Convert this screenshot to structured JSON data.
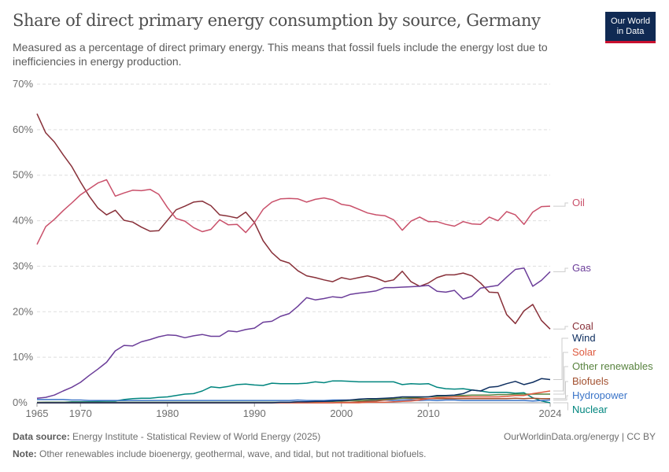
{
  "header": {
    "title": "Share of direct primary energy consumption by source, Germany",
    "subtitle": "Measured as a percentage of direct primary energy. This means that fossil fuels include the energy lost due to inefficiencies in energy production.",
    "logo_line1": "Our World",
    "logo_line2": "in Data"
  },
  "footer": {
    "source_label": "Data source:",
    "source_text": "Energy Institute - Statistical Review of World Energy (2025)",
    "url": "OurWorldinData.org/energy | CC BY",
    "note_label": "Note:",
    "note_text": "Other renewables include bioenergy, geothermal, wave, and tidal, but not traditional biofuels."
  },
  "chart_data": {
    "type": "line",
    "title": "Share of direct primary energy consumption by source, Germany",
    "xlim": [
      1965,
      2024
    ],
    "ylim": [
      0,
      70
    ],
    "grid": true,
    "x_ticks": [
      {
        "v": 1965,
        "label": "1965"
      },
      {
        "v": 1970,
        "label": "1970"
      },
      {
        "v": 1980,
        "label": "1980"
      },
      {
        "v": 1990,
        "label": "1990"
      },
      {
        "v": 2000,
        "label": "2000"
      },
      {
        "v": 2010,
        "label": "2010"
      },
      {
        "v": 2024,
        "label": "2024"
      }
    ],
    "y_ticks": [
      {
        "v": 0,
        "label": "0%"
      },
      {
        "v": 10,
        "label": "10%"
      },
      {
        "v": 20,
        "label": "20%"
      },
      {
        "v": 30,
        "label": "30%"
      },
      {
        "v": 40,
        "label": "40%"
      },
      {
        "v": 50,
        "label": "50%"
      },
      {
        "v": 60,
        "label": "60%"
      },
      {
        "v": 70,
        "label": "70%"
      }
    ],
    "x_start": 1965,
    "series": [
      {
        "name": "Oil",
        "color": "#c9506a",
        "values": [
          34.8,
          38.7,
          40.3,
          42.2,
          43.9,
          45.7,
          47.0,
          48.3,
          49.0,
          45.4,
          46.1,
          46.7,
          46.6,
          46.9,
          45.8,
          42.9,
          40.5,
          39.9,
          38.5,
          37.6,
          38.1,
          40.2,
          39.1,
          39.2,
          37.4,
          39.6,
          42.5,
          44.1,
          44.8,
          44.9,
          44.8,
          44.1,
          44.7,
          45.0,
          44.6,
          43.6,
          43.3,
          42.5,
          41.7,
          41.3,
          41.1,
          40.2,
          37.9,
          39.9,
          40.8,
          39.8,
          39.8,
          39.2,
          38.8,
          39.8,
          39.3,
          39.2,
          40.8,
          40.0,
          42.0,
          41.3,
          39.2,
          41.9,
          43.1,
          43.2
        ]
      },
      {
        "name": "Gas",
        "color": "#6b3d99",
        "values": [
          1.0,
          1.2,
          1.7,
          2.6,
          3.4,
          4.5,
          6.0,
          7.4,
          8.9,
          11.4,
          12.6,
          12.5,
          13.4,
          13.9,
          14.5,
          14.9,
          14.8,
          14.3,
          14.7,
          15.0,
          14.6,
          14.6,
          15.8,
          15.6,
          16.1,
          16.4,
          17.7,
          17.9,
          19.0,
          19.6,
          21.2,
          23.1,
          22.6,
          22.9,
          23.3,
          23.1,
          23.8,
          24.1,
          24.3,
          24.6,
          25.3,
          25.3,
          25.4,
          25.5,
          25.6,
          25.8,
          24.5,
          24.3,
          24.7,
          22.8,
          23.4,
          25.2,
          25.5,
          25.8,
          27.6,
          29.3,
          29.6,
          25.6,
          26.9,
          28.8
        ]
      },
      {
        "name": "Coal",
        "color": "#883039",
        "values": [
          63.5,
          59.3,
          57.3,
          54.5,
          51.9,
          48.5,
          45.4,
          42.8,
          41.3,
          42.3,
          40.1,
          39.7,
          38.6,
          37.7,
          37.8,
          40.1,
          42.4,
          43.2,
          44.1,
          44.3,
          43.3,
          41.3,
          41.0,
          40.6,
          41.9,
          39.6,
          35.6,
          33.0,
          31.3,
          30.7,
          29.0,
          27.9,
          27.5,
          27.0,
          26.6,
          27.5,
          27.1,
          27.5,
          27.9,
          27.4,
          26.6,
          27.0,
          28.9,
          26.6,
          25.6,
          26.3,
          27.5,
          28.1,
          28.1,
          28.5,
          27.9,
          26.3,
          24.3,
          24.2,
          19.4,
          17.4,
          20.2,
          21.6,
          18.1,
          16.2
        ]
      },
      {
        "name": "Wind",
        "color": "#0f2f60",
        "values": [
          0,
          0,
          0,
          0,
          0,
          0,
          0,
          0,
          0,
          0,
          0,
          0,
          0,
          0,
          0,
          0,
          0,
          0,
          0,
          0,
          0,
          0,
          0,
          0,
          0,
          0,
          0,
          0,
          0.1,
          0.1,
          0.2,
          0.2,
          0.3,
          0.3,
          0.4,
          0.5,
          0.6,
          0.8,
          0.9,
          0.9,
          1.0,
          1.1,
          1.3,
          1.3,
          1.3,
          1.3,
          1.6,
          1.6,
          1.7,
          2.0,
          2.8,
          2.6,
          3.4,
          3.6,
          4.2,
          4.7,
          4.0,
          4.5,
          5.3,
          5.1
        ]
      },
      {
        "name": "Solar",
        "color": "#de5b40",
        "values": [
          0,
          0,
          0,
          0,
          0,
          0,
          0,
          0,
          0,
          0,
          0,
          0,
          0,
          0,
          0,
          0,
          0,
          0,
          0,
          0,
          0,
          0,
          0,
          0,
          0,
          0,
          0,
          0,
          0,
          0,
          0,
          0,
          0,
          0,
          0,
          0,
          0,
          0,
          0.1,
          0.1,
          0.1,
          0.2,
          0.3,
          0.4,
          0.6,
          0.9,
          1.1,
          1.2,
          1.3,
          1.3,
          1.3,
          1.3,
          1.3,
          1.3,
          1.4,
          1.6,
          1.6,
          2.0,
          2.3,
          2.6
        ]
      },
      {
        "name": "Other renewables",
        "color": "#58833f",
        "values": [
          0.1,
          0.1,
          0.1,
          0.1,
          0.1,
          0.1,
          0.1,
          0.1,
          0.1,
          0.1,
          0.1,
          0.1,
          0.1,
          0.1,
          0.1,
          0.1,
          0.1,
          0.1,
          0.1,
          0.1,
          0.1,
          0.1,
          0.1,
          0.1,
          0.1,
          0.1,
          0.1,
          0.1,
          0.1,
          0.1,
          0.2,
          0.2,
          0.2,
          0.3,
          0.3,
          0.4,
          0.5,
          0.5,
          0.6,
          0.7,
          0.8,
          0.9,
          1.0,
          1.1,
          1.2,
          1.3,
          1.4,
          1.5,
          1.6,
          1.6,
          1.7,
          1.7,
          1.7,
          1.8,
          1.8,
          1.9,
          1.9,
          1.9,
          1.9,
          1.9
        ]
      },
      {
        "name": "Biofuels",
        "color": "#a35130",
        "values": [
          0,
          0,
          0,
          0,
          0,
          0,
          0,
          0,
          0,
          0,
          0,
          0,
          0,
          0,
          0,
          0,
          0,
          0,
          0,
          0,
          0,
          0,
          0,
          0,
          0,
          0,
          0,
          0,
          0,
          0,
          0,
          0,
          0,
          0,
          0,
          0.1,
          0.1,
          0.2,
          0.3,
          0.4,
          0.6,
          0.8,
          1.0,
          0.9,
          0.9,
          0.9,
          0.9,
          0.9,
          0.9,
          0.9,
          0.9,
          0.9,
          0.9,
          0.9,
          0.9,
          1.0,
          0.9,
          1.0,
          0.9,
          0.9
        ]
      },
      {
        "name": "Hydropower",
        "color": "#3a74c8",
        "values": [
          0.7,
          0.7,
          0.7,
          0.7,
          0.6,
          0.6,
          0.5,
          0.5,
          0.5,
          0.5,
          0.5,
          0.5,
          0.5,
          0.5,
          0.5,
          0.5,
          0.5,
          0.5,
          0.5,
          0.5,
          0.5,
          0.5,
          0.5,
          0.5,
          0.5,
          0.5,
          0.5,
          0.5,
          0.5,
          0.5,
          0.6,
          0.5,
          0.5,
          0.5,
          0.6,
          0.6,
          0.6,
          0.6,
          0.5,
          0.6,
          0.6,
          0.5,
          0.6,
          0.6,
          0.5,
          0.6,
          0.5,
          0.6,
          0.6,
          0.5,
          0.5,
          0.5,
          0.5,
          0.5,
          0.5,
          0.5,
          0.5,
          0.4,
          0.5,
          0.6
        ]
      },
      {
        "name": "Nuclear",
        "color": "#00857e",
        "values": [
          0.0,
          0.1,
          0.1,
          0.1,
          0.2,
          0.2,
          0.2,
          0.3,
          0.4,
          0.4,
          0.7,
          0.9,
          1.0,
          1.0,
          1.2,
          1.3,
          1.6,
          1.9,
          2.0,
          2.6,
          3.5,
          3.3,
          3.6,
          4.0,
          4.1,
          3.9,
          3.8,
          4.3,
          4.2,
          4.2,
          4.2,
          4.3,
          4.6,
          4.4,
          4.8,
          4.8,
          4.7,
          4.6,
          4.6,
          4.6,
          4.6,
          4.6,
          4.0,
          4.2,
          4.1,
          4.2,
          3.4,
          3.1,
          3.0,
          3.1,
          2.8,
          2.6,
          2.3,
          2.3,
          2.3,
          2.1,
          2.2,
          1.1,
          0.4,
          0.0
        ]
      }
    ]
  }
}
